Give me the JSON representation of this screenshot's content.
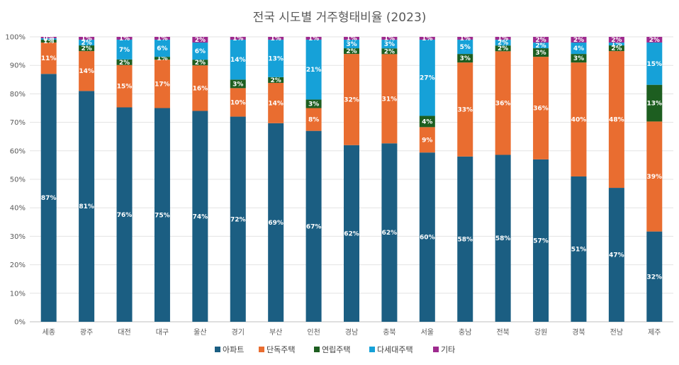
{
  "chart_data": {
    "type": "bar",
    "stacked": true,
    "title": "전국 시도별 거주형태비율 (2023)",
    "categories": [
      "세종",
      "광주",
      "대전",
      "대구",
      "울산",
      "경기",
      "부산",
      "인천",
      "경남",
      "충북",
      "서울",
      "충남",
      "전북",
      "강원",
      "경북",
      "전남",
      "제주"
    ],
    "series": [
      {
        "name": "아파트",
        "color": "#1b5e82",
        "values": [
          87,
          81,
          76,
          75,
          74,
          72,
          69,
          67,
          62,
          62,
          60,
          58,
          58,
          57,
          51,
          47,
          32
        ],
        "labels": [
          "87%",
          "81%",
          "76%",
          "75%",
          "74%",
          "72%",
          "69%",
          "67%",
          "62%",
          "62%",
          "60%",
          "58%",
          "58%",
          "57%",
          "51%",
          "47%",
          "32%"
        ]
      },
      {
        "name": "단독주택",
        "color": "#e96d30",
        "values": [
          11,
          14,
          15,
          17,
          16,
          10,
          14,
          8,
          32,
          31,
          9,
          33,
          36,
          36,
          40,
          48,
          39
        ],
        "labels": [
          "11%",
          "14%",
          "15%",
          "17%",
          "16%",
          "10%",
          "14%",
          "8%",
          "32%",
          "31%",
          "9%",
          "33%",
          "36%",
          "36%",
          "40%",
          "48%",
          "39%"
        ]
      },
      {
        "name": "연립주택",
        "color": "#1d5e20",
        "values": [
          1,
          2,
          2,
          1,
          2,
          3,
          2,
          3,
          2,
          2,
          4,
          3,
          2,
          3,
          3,
          2,
          13
        ],
        "labels": [
          "1%",
          "2%",
          "2%",
          "1%",
          "2%",
          "3%",
          "2%",
          "3%",
          "2%",
          "2%",
          "4%",
          "3%",
          "2%",
          "3%",
          "3%",
          "2%",
          "13%"
        ]
      },
      {
        "name": "다세대주택",
        "color": "#16a1d8",
        "values": [
          0.5,
          2,
          7,
          6,
          6,
          14,
          13,
          21,
          3,
          3,
          27,
          5,
          2,
          2,
          4,
          1,
          15
        ],
        "labels": [
          "0%",
          "2%",
          "7%",
          "6%",
          "6%",
          "14%",
          "13%",
          "21%",
          "3%",
          "3%",
          "27%",
          "5%",
          "2%",
          "2%",
          "4%",
          "1%",
          "15%"
        ]
      },
      {
        "name": "기타",
        "color": "#9e2a8e",
        "values": [
          0.5,
          1,
          1,
          1,
          2,
          1,
          1,
          1,
          1,
          1,
          1,
          1,
          1,
          2,
          2,
          2,
          2
        ],
        "labels": [
          "0%",
          "1%",
          "1%",
          "1%",
          "2%",
          "1%",
          "1%",
          "1%",
          "1%",
          "1%",
          "1%",
          "1%",
          "1%",
          "2%",
          "2%",
          "2%",
          "2%"
        ]
      }
    ],
    "y_ticks": [
      "0%",
      "10%",
      "20%",
      "30%",
      "40%",
      "50%",
      "60%",
      "70%",
      "80%",
      "90%",
      "100%"
    ],
    "ylim": [
      0,
      100
    ],
    "grid": true,
    "legend_position": "bottom"
  }
}
